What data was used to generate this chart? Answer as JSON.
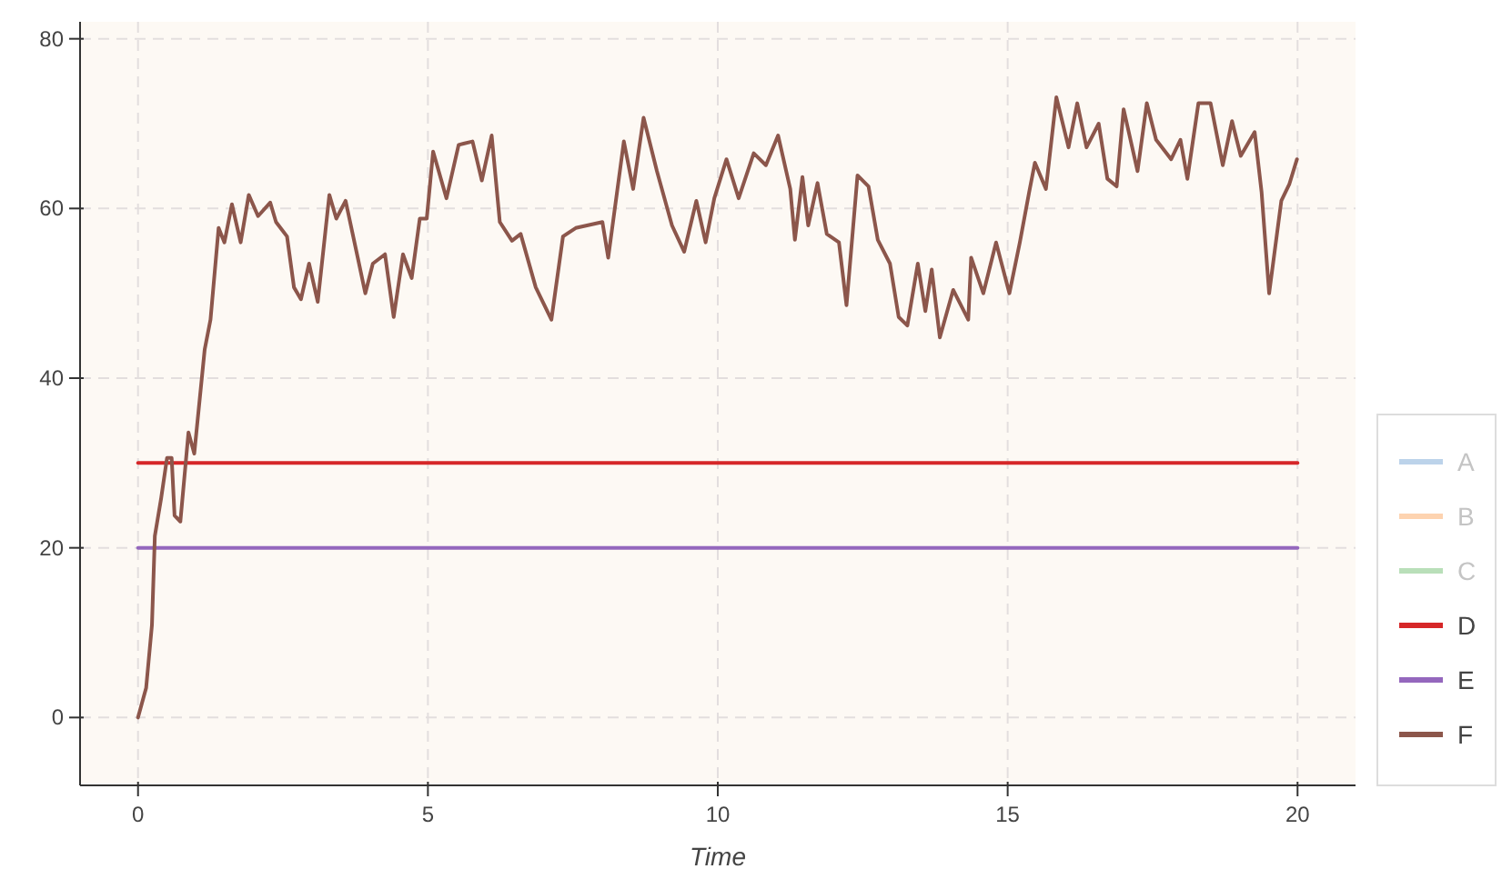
{
  "chart_data": {
    "type": "line",
    "xlabel": "Time",
    "xlim": [
      -1,
      21
    ],
    "ylim": [
      -8,
      82
    ],
    "xticks": [
      0,
      5,
      10,
      15,
      20
    ],
    "yticks": [
      0,
      20,
      40,
      60,
      80
    ],
    "grid": true,
    "legend": "right",
    "line_style": "solid",
    "marker": "none",
    "series": [
      {
        "name": "A",
        "color": "#bcd3ea"
      },
      {
        "name": "B",
        "color": "#fdd3b0"
      },
      {
        "name": "C",
        "color": "#b9dfb9"
      },
      {
        "name": "D",
        "color": "#d62728",
        "x": [
          0,
          20
        ],
        "values": [
          30,
          30
        ]
      },
      {
        "name": "E",
        "color": "#9467bd",
        "x": [
          0,
          20
        ],
        "values": [
          20,
          20
        ]
      },
      {
        "name": "F",
        "color": "#8c564b",
        "x": [
          0,
          0.14,
          0.24,
          0.29,
          0.4,
          0.5,
          0.58,
          0.63,
          0.73,
          0.87,
          0.97,
          1.15,
          1.25,
          1.39,
          1.49,
          1.62,
          1.77,
          1.91,
          2.07,
          2.28,
          2.38,
          2.57,
          2.69,
          2.81,
          2.95,
          3.1,
          3.3,
          3.42,
          3.58,
          3.79,
          3.92,
          4.05,
          4.26,
          4.41,
          4.57,
          4.72,
          4.86,
          4.98,
          5.09,
          5.32,
          5.53,
          5.77,
          5.93,
          6.1,
          6.24,
          6.45,
          6.6,
          6.86,
          7.13,
          7.33,
          7.55,
          8.01,
          8.11,
          8.38,
          8.54,
          8.72,
          8.95,
          9.21,
          9.42,
          9.63,
          9.79,
          9.94,
          10.15,
          10.36,
          10.62,
          10.83,
          11.04,
          11.25,
          11.33,
          11.46,
          11.56,
          11.72,
          11.88,
          12.09,
          12.22,
          12.41,
          12.6,
          12.76,
          12.97,
          13.12,
          13.27,
          13.45,
          13.58,
          13.69,
          13.83,
          14.06,
          14.32,
          14.37,
          14.58,
          14.8,
          15.03,
          15.21,
          15.37,
          15.47,
          15.66,
          15.84,
          16.05,
          16.2,
          16.36,
          16.57,
          16.72,
          16.88,
          17,
          17.24,
          17.4,
          17.56,
          17.82,
          17.98,
          18.1,
          18.29,
          18.5,
          18.71,
          18.87,
          19.02,
          19.26,
          19.38,
          19.51,
          19.72,
          19.86,
          19.99
        ],
        "values": [
          0,
          3.5,
          10.9,
          21.4,
          25.9,
          30.6,
          30.6,
          23.8,
          23.1,
          33.6,
          31.1,
          43.4,
          46.9,
          57.7,
          56,
          60.5,
          56,
          61.6,
          59.1,
          60.7,
          58.4,
          56.7,
          50.7,
          49.3,
          53.5,
          49,
          61.6,
          58.8,
          60.9,
          54.2,
          50,
          53.5,
          54.6,
          47.2,
          54.6,
          51.8,
          58.8,
          58.8,
          66.7,
          61.2,
          67.5,
          67.9,
          63.3,
          68.6,
          58.4,
          56.2,
          57,
          50.7,
          46.9,
          56.7,
          57.7,
          58.4,
          54.2,
          67.9,
          62.3,
          70.7,
          64.4,
          58,
          54.9,
          60.9,
          56,
          61.2,
          65.8,
          61.2,
          66.5,
          65.1,
          68.6,
          62.3,
          56.3,
          63.7,
          58,
          63,
          57,
          56,
          48.6,
          63.9,
          62.6,
          56.3,
          53.5,
          47.2,
          46.2,
          53.5,
          47.9,
          52.8,
          44.8,
          50.4,
          46.9,
          54.2,
          50,
          56,
          50,
          56,
          61.9,
          65.4,
          62.3,
          73.1,
          67.2,
          72.4,
          67.2,
          70,
          63.5,
          62.6,
          71.7,
          64.4,
          72.4,
          68.1,
          65.8,
          68.1,
          63.5,
          72.4,
          72.4,
          65.1,
          70.3,
          66.2,
          69,
          61.9,
          50,
          60.9,
          62.9,
          65.8
        ]
      }
    ]
  }
}
